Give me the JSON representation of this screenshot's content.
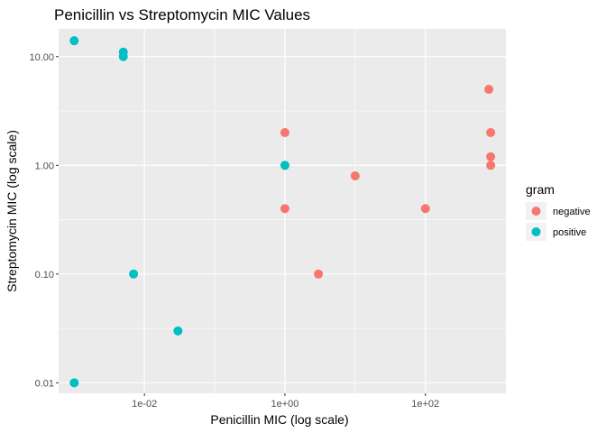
{
  "chart_data": {
    "type": "scatter",
    "title": "Penicillin vs Streptomycin MIC Values",
    "xlabel": "Penicillin MIC (log scale)",
    "ylabel": "Streptomycin MIC (log scale)",
    "x_scale": "log10",
    "y_scale": "log10",
    "xlim": [
      0.0006,
      1400
    ],
    "ylim": [
      0.008,
      18
    ],
    "x_ticks": [
      {
        "value": 0.01,
        "label": "1e-02"
      },
      {
        "value": 1,
        "label": "1e+00"
      },
      {
        "value": 100,
        "label": "1e+02"
      }
    ],
    "y_ticks": [
      {
        "value": 0.01,
        "label": "0.01"
      },
      {
        "value": 0.1,
        "label": "0.10"
      },
      {
        "value": 1,
        "label": "1.00"
      },
      {
        "value": 10,
        "label": "10.00"
      }
    ],
    "grid": true,
    "legend": {
      "title": "gram",
      "position": "right",
      "entries": [
        {
          "label": "negative",
          "color": "#F8766D"
        },
        {
          "label": "positive",
          "color": "#00BFC4"
        }
      ]
    },
    "series": [
      {
        "name": "negative",
        "color": "#F8766D",
        "points": [
          {
            "x": 1,
            "y": 2
          },
          {
            "x": 1,
            "y": 0.4
          },
          {
            "x": 3,
            "y": 0.1
          },
          {
            "x": 10,
            "y": 0.8
          },
          {
            "x": 100,
            "y": 0.4
          },
          {
            "x": 800,
            "y": 5
          },
          {
            "x": 850,
            "y": 2
          },
          {
            "x": 850,
            "y": 1.2
          },
          {
            "x": 850,
            "y": 1
          }
        ]
      },
      {
        "name": "positive",
        "color": "#00BFC4",
        "points": [
          {
            "x": 0.001,
            "y": 14
          },
          {
            "x": 0.005,
            "y": 11
          },
          {
            "x": 0.005,
            "y": 10
          },
          {
            "x": 0.007,
            "y": 0.1
          },
          {
            "x": 0.03,
            "y": 0.03
          },
          {
            "x": 0.001,
            "y": 0.01
          },
          {
            "x": 1,
            "y": 1
          }
        ]
      }
    ]
  }
}
